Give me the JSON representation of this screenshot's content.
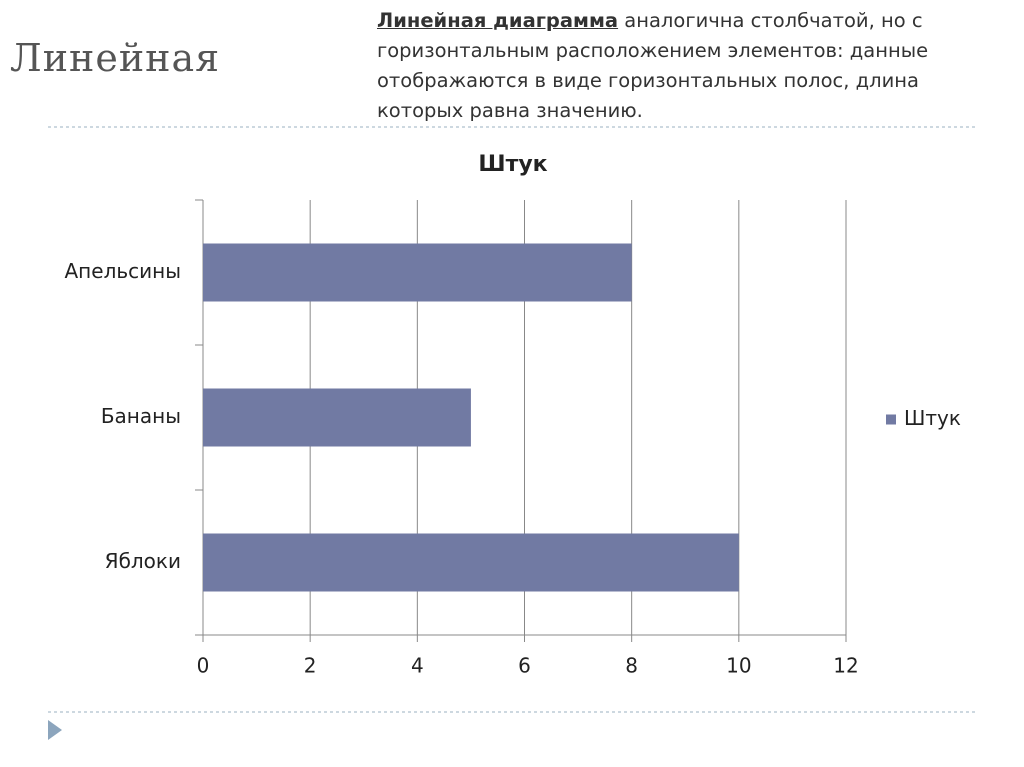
{
  "slide": {
    "title": "Линейная",
    "description": {
      "term": "Линейная диаграмма",
      "text": " аналогична столбчатой, но с горизонтальным расположением элементов: данные отображаются в виде горизонтальных полос, длина которых равна значению."
    }
  },
  "chart_data": {
    "type": "bar",
    "orientation": "horizontal",
    "title": "Штук",
    "categories": [
      "Апельсины",
      "Бананы",
      "Яблоки"
    ],
    "series": [
      {
        "name": "Штук",
        "color": "#717aa3",
        "values": [
          8,
          5,
          10
        ]
      }
    ],
    "xlim": [
      0,
      12
    ],
    "xticks": [
      0,
      2,
      4,
      6,
      8,
      10,
      12
    ],
    "grid": true,
    "legend": "right"
  }
}
